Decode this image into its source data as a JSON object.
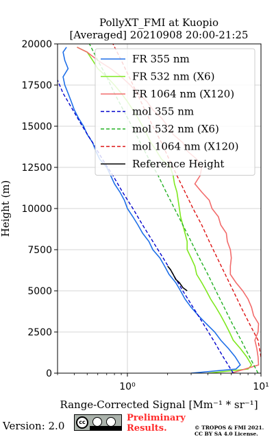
{
  "chart_data": {
    "type": "line",
    "title": "PollyXT_FMI at Kuopio",
    "subtitle": "[Averaged] 20210908 20:00-21:25",
    "xlabel": "Range-Corrected Signal [Mm⁻¹ * sr⁻¹]",
    "ylabel": "Height (m)",
    "xscale": "log",
    "xlim": [
      0.3,
      10
    ],
    "ylim": [
      0,
      20000
    ],
    "grid": true,
    "legend_position": "top-right",
    "xticks": [
      1,
      10
    ],
    "xtick_labels": [
      "10⁰",
      "10¹"
    ],
    "yticks": [
      0,
      2500,
      5000,
      7500,
      10000,
      12500,
      15000,
      17500,
      20000
    ],
    "series": [
      {
        "name": "FR 355 nm",
        "style": "solid",
        "color": "#1e6fe8",
        "points": [
          [
            3,
            0
          ],
          [
            6.5,
            250
          ],
          [
            7.0,
            500
          ],
          [
            6.4,
            1000
          ],
          [
            5.7,
            1500
          ],
          [
            5.0,
            2000
          ],
          [
            4.5,
            2500
          ],
          [
            3.9,
            3000
          ],
          [
            3.4,
            3500
          ],
          [
            3.0,
            4000
          ],
          [
            2.7,
            4500
          ],
          [
            2.5,
            5000
          ],
          [
            2.3,
            5500
          ],
          [
            2.05,
            6000
          ],
          [
            1.9,
            6500
          ],
          [
            1.75,
            7000
          ],
          [
            1.55,
            7500
          ],
          [
            1.45,
            8000
          ],
          [
            1.3,
            8500
          ],
          [
            1.2,
            9000
          ],
          [
            1.1,
            9500
          ],
          [
            1.0,
            10000
          ],
          [
            0.95,
            10500
          ],
          [
            0.88,
            11000
          ],
          [
            0.8,
            11500
          ],
          [
            0.75,
            12000
          ],
          [
            0.7,
            12500
          ],
          [
            0.62,
            13000
          ],
          [
            0.58,
            13500
          ],
          [
            0.55,
            14000
          ],
          [
            0.5,
            14500
          ],
          [
            0.47,
            15000
          ],
          [
            0.43,
            15500
          ],
          [
            0.4,
            16000
          ],
          [
            0.38,
            16500
          ],
          [
            0.36,
            17000
          ],
          [
            0.34,
            17500
          ],
          [
            0.33,
            18000
          ],
          [
            0.36,
            18500
          ],
          [
            0.34,
            19000
          ],
          [
            0.33,
            19500
          ],
          [
            0.35,
            19800
          ]
        ]
      },
      {
        "name": "FR 532 nm (X6)",
        "style": "solid",
        "color": "#7ee81e",
        "points": [
          [
            4,
            0
          ],
          [
            8.0,
            250
          ],
          [
            8.5,
            500
          ],
          [
            7.8,
            1000
          ],
          [
            7.0,
            1500
          ],
          [
            6.2,
            2000
          ],
          [
            5.8,
            2500
          ],
          [
            5.4,
            3000
          ],
          [
            5.0,
            3500
          ],
          [
            4.6,
            4000
          ],
          [
            4.2,
            4500
          ],
          [
            3.9,
            5000
          ],
          [
            3.6,
            5500
          ],
          [
            3.3,
            6000
          ],
          [
            3.2,
            6500
          ],
          [
            3.0,
            7000
          ],
          [
            2.8,
            7500
          ],
          [
            2.8,
            8000
          ],
          [
            2.7,
            8500
          ],
          [
            2.6,
            9000
          ],
          [
            2.5,
            9500
          ],
          [
            2.45,
            10000
          ],
          [
            2.4,
            10500
          ],
          [
            2.35,
            11000
          ],
          [
            2.25,
            11500
          ],
          [
            2.2,
            12000
          ],
          [
            2.1,
            12500
          ],
          [
            1.8,
            13000
          ],
          [
            1.65,
            13500
          ],
          [
            1.5,
            14000
          ],
          [
            1.4,
            14500
          ],
          [
            1.3,
            15000
          ],
          [
            1.2,
            15500
          ],
          [
            1.1,
            16000
          ],
          [
            1.0,
            16500
          ],
          [
            0.9,
            17000
          ],
          [
            0.8,
            17500
          ],
          [
            0.7,
            18000
          ],
          [
            0.6,
            18500
          ],
          [
            0.55,
            19000
          ],
          [
            0.5,
            19500
          ],
          [
            0.42,
            19800
          ]
        ]
      },
      {
        "name": "FR 1064 nm (X120)",
        "style": "solid",
        "color": "#f26b6b",
        "points": [
          [
            6,
            0
          ],
          [
            9.6,
            500
          ],
          [
            9.5,
            1000
          ],
          [
            9.3,
            1500
          ],
          [
            9.0,
            2000
          ],
          [
            9.5,
            2500
          ],
          [
            9.6,
            3000
          ],
          [
            8.8,
            3500
          ],
          [
            8.5,
            4000
          ],
          [
            8.0,
            4500
          ],
          [
            7.3,
            5000
          ],
          [
            6.5,
            5500
          ],
          [
            5.9,
            6000
          ],
          [
            5.9,
            6500
          ],
          [
            6.0,
            7000
          ],
          [
            5.9,
            7500
          ],
          [
            5.6,
            8000
          ],
          [
            5.5,
            8500
          ],
          [
            5.0,
            9000
          ],
          [
            4.8,
            9500
          ],
          [
            4.3,
            10000
          ],
          [
            4.1,
            10500
          ],
          [
            3.6,
            11000
          ],
          [
            3.2,
            11500
          ],
          [
            3.5,
            12000
          ],
          [
            3.6,
            12500
          ],
          [
            3.3,
            13000
          ],
          [
            2.8,
            13500
          ],
          [
            2.6,
            14000
          ],
          [
            2.2,
            14500
          ],
          [
            2.0,
            15000
          ],
          [
            1.8,
            15500
          ],
          [
            1.55,
            16000
          ],
          [
            1.4,
            16500
          ],
          [
            1.2,
            17000
          ],
          [
            1.05,
            17500
          ],
          [
            0.9,
            18000
          ],
          [
            0.75,
            18500
          ],
          [
            0.6,
            19000
          ],
          [
            0.5,
            19500
          ],
          [
            0.42,
            19800
          ]
        ]
      },
      {
        "name": "mol 355 nm",
        "style": "dashed",
        "color": "#0000cc",
        "points": [
          [
            6.2,
            0
          ],
          [
            5.2,
            1000
          ],
          [
            4.4,
            2000
          ],
          [
            3.7,
            3000
          ],
          [
            3.1,
            4000
          ],
          [
            2.6,
            5000
          ],
          [
            2.2,
            6000
          ],
          [
            1.85,
            7000
          ],
          [
            1.55,
            8000
          ],
          [
            1.3,
            9000
          ],
          [
            1.1,
            10000
          ],
          [
            0.92,
            11000
          ],
          [
            0.78,
            12000
          ],
          [
            0.65,
            13000
          ],
          [
            0.55,
            14000
          ],
          [
            0.46,
            15000
          ],
          [
            0.39,
            16000
          ],
          [
            0.33,
            17000
          ],
          [
            0.3,
            17800
          ]
        ]
      },
      {
        "name": "mol 532 nm (X6)",
        "style": "dashed",
        "color": "#22b022",
        "points": [
          [
            9.5,
            0
          ],
          [
            8.2,
            1000
          ],
          [
            7.1,
            2000
          ],
          [
            6.1,
            3000
          ],
          [
            5.3,
            4000
          ],
          [
            4.6,
            5000
          ],
          [
            4.0,
            6000
          ],
          [
            3.45,
            7000
          ],
          [
            3.0,
            8000
          ],
          [
            2.6,
            9000
          ],
          [
            2.25,
            10000
          ],
          [
            1.95,
            11000
          ],
          [
            1.7,
            12000
          ],
          [
            1.45,
            13000
          ],
          [
            1.25,
            14000
          ],
          [
            1.08,
            15000
          ],
          [
            0.93,
            16000
          ],
          [
            0.8,
            17000
          ],
          [
            0.7,
            18000
          ],
          [
            0.6,
            19000
          ],
          [
            0.52,
            20000
          ]
        ]
      },
      {
        "name": "mol 1064 nm (X120)",
        "style": "dashed",
        "color": "#dd1111",
        "points": [
          [
            10.5,
            0
          ],
          [
            9.5,
            2000
          ],
          [
            8.2,
            3000
          ],
          [
            7.1,
            4000
          ],
          [
            6.2,
            5000
          ],
          [
            5.4,
            6000
          ],
          [
            4.7,
            7000
          ],
          [
            4.1,
            8000
          ],
          [
            3.6,
            9000
          ],
          [
            3.1,
            10000
          ],
          [
            2.7,
            11000
          ],
          [
            2.35,
            12000
          ],
          [
            2.05,
            13000
          ],
          [
            1.8,
            14000
          ],
          [
            1.55,
            15000
          ],
          [
            1.35,
            16000
          ],
          [
            1.18,
            17000
          ],
          [
            1.03,
            18000
          ],
          [
            0.9,
            19000
          ],
          [
            0.78,
            20000
          ]
        ]
      },
      {
        "name": "Reference Height",
        "style": "solid",
        "color": "#000000",
        "points": [
          [
            2.0,
            6500
          ],
          [
            2.1,
            6300
          ],
          [
            2.2,
            6000
          ],
          [
            2.3,
            5700
          ],
          [
            2.45,
            5500
          ],
          [
            2.6,
            5200
          ],
          [
            2.8,
            5000
          ]
        ]
      }
    ]
  },
  "footer": {
    "version": "Version: 2.0",
    "prelim_line1": "Preliminary",
    "prelim_line2": "Results.",
    "copyright_line1": "© TROPOS & FMI 2021.",
    "copyright_line2": "CC BY SA 4.0 License."
  }
}
